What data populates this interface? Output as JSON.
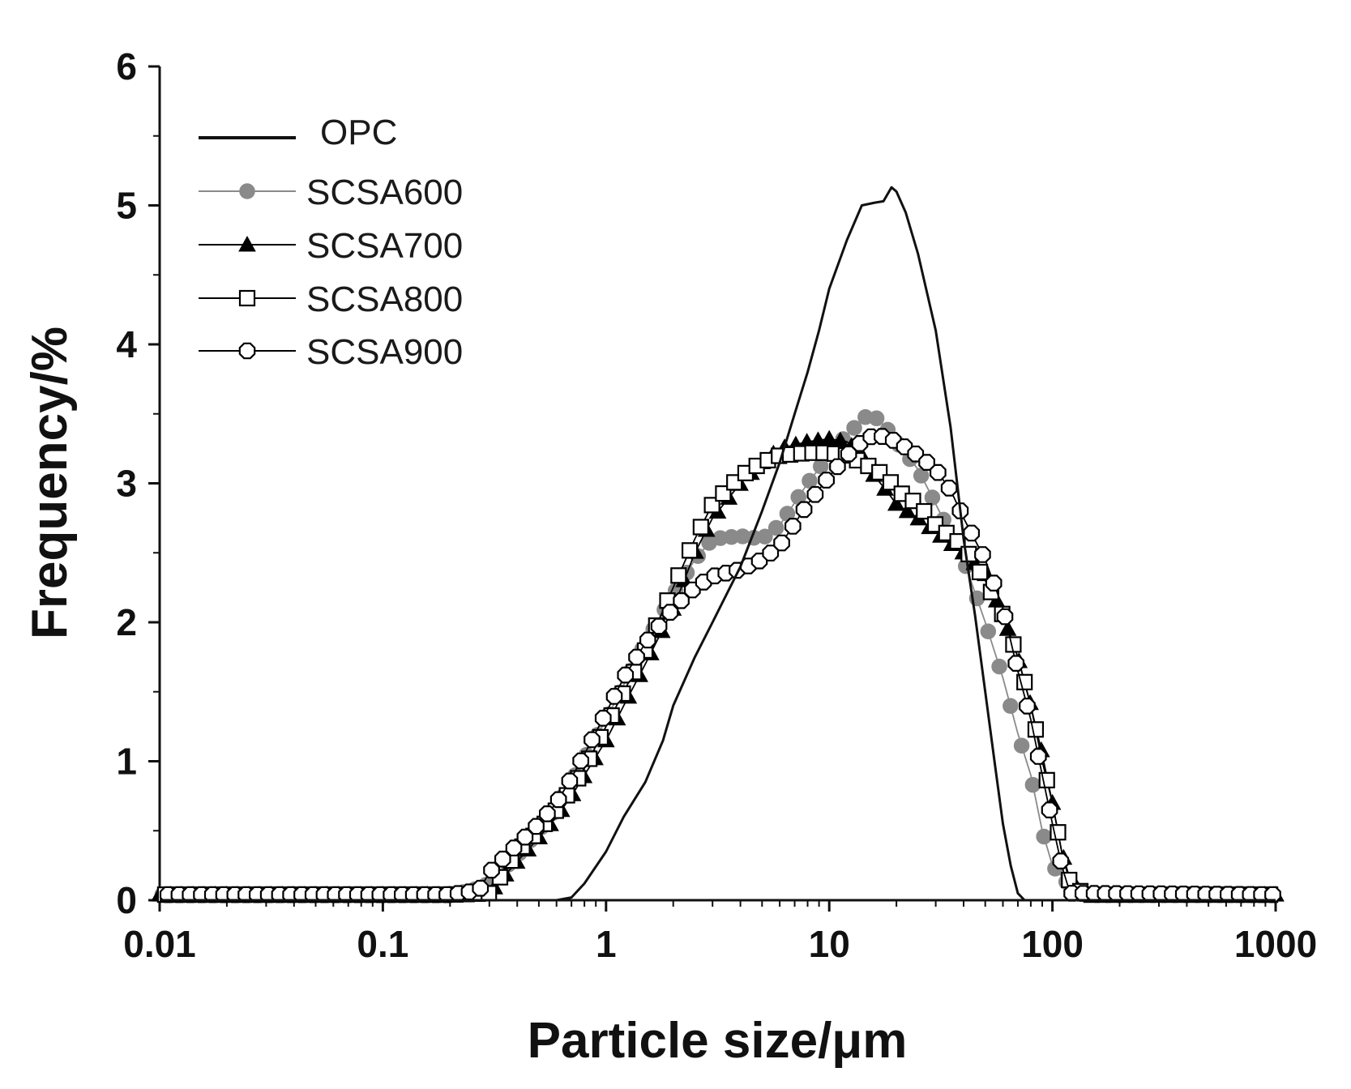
{
  "chart_data": {
    "type": "line",
    "title": "",
    "xlabel": "Particle size/μm",
    "ylabel": "Frequency/%",
    "xscale": "log",
    "xlim": [
      0.01,
      1000
    ],
    "ylim": [
      0,
      6
    ],
    "x_ticks": [
      0.01,
      0.1,
      1,
      10,
      100,
      1000
    ],
    "x_tick_labels": [
      "0.01",
      "0.1",
      "1",
      "10",
      "100",
      "1000"
    ],
    "y_ticks": [
      0,
      1,
      2,
      3,
      4,
      5,
      6
    ],
    "y_tick_labels": [
      "0",
      "1",
      "2",
      "3",
      "4",
      "5",
      "6"
    ],
    "legend_position": "top-left",
    "series": [
      {
        "name": "OPC",
        "marker": "none",
        "color": "#111111",
        "x": [
          0.01,
          0.1,
          0.6,
          0.7,
          0.8,
          1.0,
          1.2,
          1.5,
          1.8,
          2.0,
          2.5,
          3.0,
          4.0,
          5.0,
          6.0,
          7.0,
          8.0,
          9.0,
          10.0,
          12.0,
          14.0,
          16.0,
          17.5,
          19.0,
          20.0,
          22.0,
          25.0,
          30.0,
          35.0,
          40.0,
          45.0,
          50.0,
          55.0,
          60.0,
          65.0,
          70.0,
          75.0,
          80.0,
          100.0,
          1000.0
        ],
        "y": [
          0,
          0,
          0,
          0.02,
          0.12,
          0.35,
          0.6,
          0.85,
          1.15,
          1.4,
          1.75,
          2.0,
          2.4,
          2.8,
          3.15,
          3.5,
          3.8,
          4.1,
          4.4,
          4.75,
          5.0,
          5.02,
          5.03,
          5.13,
          5.1,
          4.95,
          4.65,
          4.1,
          3.4,
          2.6,
          2.05,
          1.5,
          1.0,
          0.55,
          0.25,
          0.05,
          0,
          0,
          0,
          0
        ]
      },
      {
        "name": "SCSA600",
        "marker": "filled-circle",
        "color": "#8a8a8a",
        "x": [
          0.01,
          0.2,
          0.25,
          0.3,
          0.4,
          0.5,
          0.6,
          0.7,
          0.8,
          1.0,
          1.2,
          1.5,
          2.0,
          2.5,
          3.0,
          4.0,
          5.0,
          6.0,
          8.0,
          10.0,
          12.0,
          14.0,
          15.0,
          16.0,
          18.0,
          20.0,
          25.0,
          30.0,
          40.0,
          50.0,
          60.0,
          70.0,
          80.0,
          90.0,
          100.0,
          120.0,
          140.0,
          1000.0
        ],
        "y": [
          0.04,
          0.04,
          0.07,
          0.12,
          0.32,
          0.5,
          0.66,
          0.85,
          1.02,
          1.3,
          1.55,
          1.85,
          2.2,
          2.45,
          2.6,
          2.62,
          2.6,
          2.7,
          3.0,
          3.2,
          3.35,
          3.45,
          3.5,
          3.48,
          3.4,
          3.3,
          3.1,
          2.85,
          2.45,
          2.0,
          1.6,
          1.2,
          0.9,
          0.5,
          0.25,
          0.1,
          0.04,
          0.04
        ]
      },
      {
        "name": "SCSA700",
        "marker": "filled-triangle",
        "color": "#000000",
        "x": [
          0.01,
          0.2,
          0.3,
          0.4,
          0.5,
          0.6,
          0.7,
          0.8,
          1.0,
          1.2,
          1.5,
          2.0,
          2.5,
          3.0,
          4.0,
          5.0,
          6.0,
          8.0,
          10.0,
          12.0,
          14.0,
          16.0,
          18.0,
          20.0,
          25.0,
          30.0,
          40.0,
          50.0,
          60.0,
          70.0,
          80.0,
          90.0,
          100.0,
          110.0,
          120.0,
          140.0,
          1000.0
        ],
        "y": [
          0.04,
          0.04,
          0.05,
          0.28,
          0.45,
          0.6,
          0.75,
          0.9,
          1.15,
          1.4,
          1.7,
          2.1,
          2.5,
          2.75,
          3.0,
          3.15,
          3.25,
          3.3,
          3.32,
          3.3,
          3.2,
          3.05,
          2.95,
          2.85,
          2.75,
          2.65,
          2.5,
          2.35,
          2.05,
          1.75,
          1.4,
          1.05,
          0.7,
          0.35,
          0.15,
          0.04,
          0.04
        ]
      },
      {
        "name": "SCSA800",
        "marker": "open-square",
        "color": "#000000",
        "x": [
          0.01,
          0.2,
          0.3,
          0.4,
          0.5,
          0.6,
          0.7,
          0.8,
          1.0,
          1.2,
          1.5,
          2.0,
          2.5,
          3.0,
          4.0,
          5.0,
          6.0,
          8.0,
          10.0,
          12.0,
          14.0,
          16.0,
          18.0,
          20.0,
          25.0,
          30.0,
          40.0,
          50.0,
          60.0,
          70.0,
          80.0,
          90.0,
          100.0,
          110.0,
          120.0,
          140.0,
          1000.0
        ],
        "y": [
          0.04,
          0.04,
          0.05,
          0.35,
          0.5,
          0.65,
          0.8,
          0.95,
          1.25,
          1.5,
          1.8,
          2.25,
          2.6,
          2.85,
          3.05,
          3.15,
          3.2,
          3.22,
          3.22,
          3.2,
          3.15,
          3.1,
          3.05,
          2.95,
          2.85,
          2.7,
          2.55,
          2.3,
          2.05,
          1.75,
          1.4,
          1.0,
          0.7,
          0.35,
          0.12,
          0.04,
          0.04
        ]
      },
      {
        "name": "SCSA900",
        "marker": "open-circle",
        "color": "#000000",
        "x": [
          0.01,
          0.2,
          0.27,
          0.3,
          0.4,
          0.5,
          0.6,
          0.7,
          0.8,
          1.0,
          1.2,
          1.5,
          2.0,
          2.5,
          3.0,
          4.0,
          5.0,
          6.0,
          8.0,
          10.0,
          12.0,
          14.0,
          16.0,
          18.0,
          20.0,
          25.0,
          30.0,
          35.0,
          40.0,
          50.0,
          60.0,
          70.0,
          80.0,
          90.0,
          100.0,
          110.0,
          120.0,
          1000.0
        ],
        "y": [
          0.04,
          0.04,
          0.07,
          0.2,
          0.4,
          0.55,
          0.7,
          0.88,
          1.05,
          1.35,
          1.6,
          1.85,
          2.1,
          2.25,
          2.33,
          2.38,
          2.45,
          2.55,
          2.85,
          3.05,
          3.2,
          3.3,
          3.35,
          3.33,
          3.3,
          3.2,
          3.1,
          2.95,
          2.75,
          2.45,
          2.1,
          1.65,
          1.3,
          0.9,
          0.55,
          0.25,
          0.05,
          0.04
        ]
      }
    ]
  }
}
